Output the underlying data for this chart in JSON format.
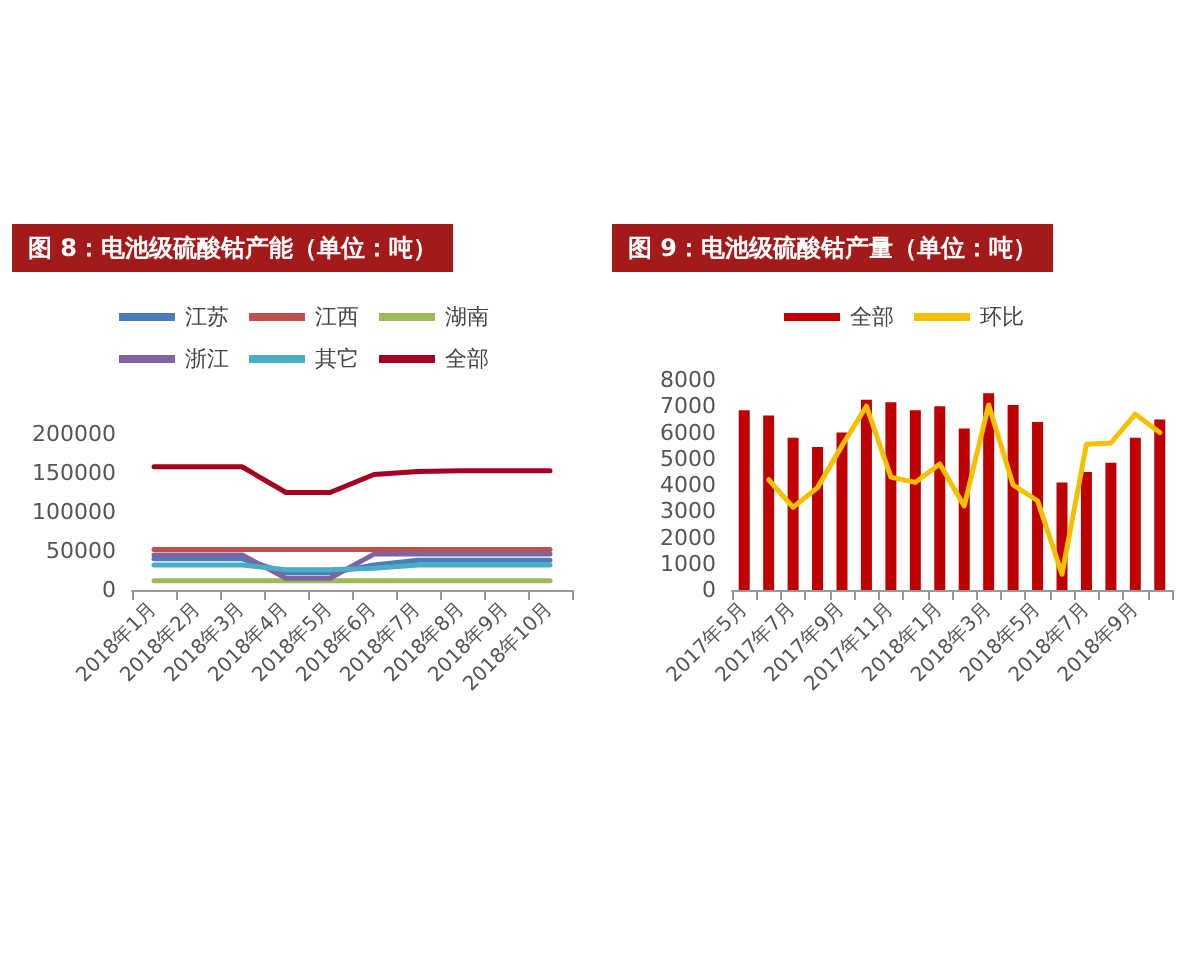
{
  "chart_data": [
    {
      "type": "line",
      "title": "图 8：电池级硫酸钴产能（单位：吨）",
      "categories": [
        "2018年1月",
        "2018年2月",
        "2018年3月",
        "2018年4月",
        "2018年5月",
        "2018年6月",
        "2018年7月",
        "2018年8月",
        "2018年9月",
        "2018年10月"
      ],
      "series": [
        {
          "name": "江苏",
          "color": "#4a7ebb",
          "values": [
            40000,
            40000,
            40000,
            22000,
            22000,
            32000,
            38000,
            38000,
            38000,
            38000
          ]
        },
        {
          "name": "江西",
          "color": "#c0504d",
          "values": [
            52000,
            52000,
            52000,
            52000,
            52000,
            52000,
            52000,
            52000,
            52000,
            52000
          ]
        },
        {
          "name": "湖南",
          "color": "#9bbb59",
          "values": [
            12000,
            12000,
            12000,
            12000,
            12000,
            12000,
            12000,
            12000,
            12000,
            12000
          ]
        },
        {
          "name": "浙江",
          "color": "#8064a2",
          "values": [
            45000,
            45000,
            45000,
            15000,
            15000,
            46000,
            46000,
            46000,
            46000,
            46000
          ]
        },
        {
          "name": "其它",
          "color": "#4bacc6",
          "values": [
            32000,
            32000,
            32000,
            26000,
            26000,
            28000,
            32000,
            32000,
            32000,
            32000
          ]
        },
        {
          "name": "全部",
          "color": "#a50021",
          "values": [
            158000,
            158000,
            158000,
            125000,
            125000,
            148000,
            152000,
            153000,
            153000,
            153000
          ]
        }
      ],
      "ylim": [
        0,
        200000
      ],
      "yticks": [
        0,
        50000,
        100000,
        150000,
        200000
      ],
      "grid": false,
      "legend": "top",
      "marker": "none",
      "line_style": "solid"
    },
    {
      "type": "bar",
      "title": "图 9：电池级硫酸钴产量（单位：吨）",
      "categories": [
        "2017年5月",
        null,
        "2017年7月",
        null,
        "2017年9月",
        null,
        "2017年11月",
        null,
        "2018年1月",
        null,
        "2018年3月",
        null,
        "2018年5月",
        null,
        "2018年7月",
        null,
        "2018年9月",
        null
      ],
      "series": [
        {
          "name": "全部",
          "type": "bar",
          "color": "#c00000",
          "values": [
            6850,
            6650,
            5800,
            5450,
            6000,
            7250,
            7150,
            6850,
            7000,
            6150,
            7500,
            7050,
            6400,
            4100,
            4500,
            4850,
            5800,
            6500
          ]
        },
        {
          "name": "环比",
          "type": "line",
          "color": "#f5c000",
          "values": [
            null,
            4200,
            3150,
            3900,
            5500,
            7000,
            4300,
            4100,
            4800,
            3200,
            7050,
            4000,
            3400,
            600,
            5550,
            5600,
            6700,
            6000
          ]
        }
      ],
      "ylim": [
        0,
        8000
      ],
      "yticks": [
        0,
        1000,
        2000,
        3000,
        4000,
        5000,
        6000,
        7000,
        8000
      ],
      "grid": false,
      "legend": "top",
      "marker": "none",
      "line_style": "solid"
    }
  ]
}
